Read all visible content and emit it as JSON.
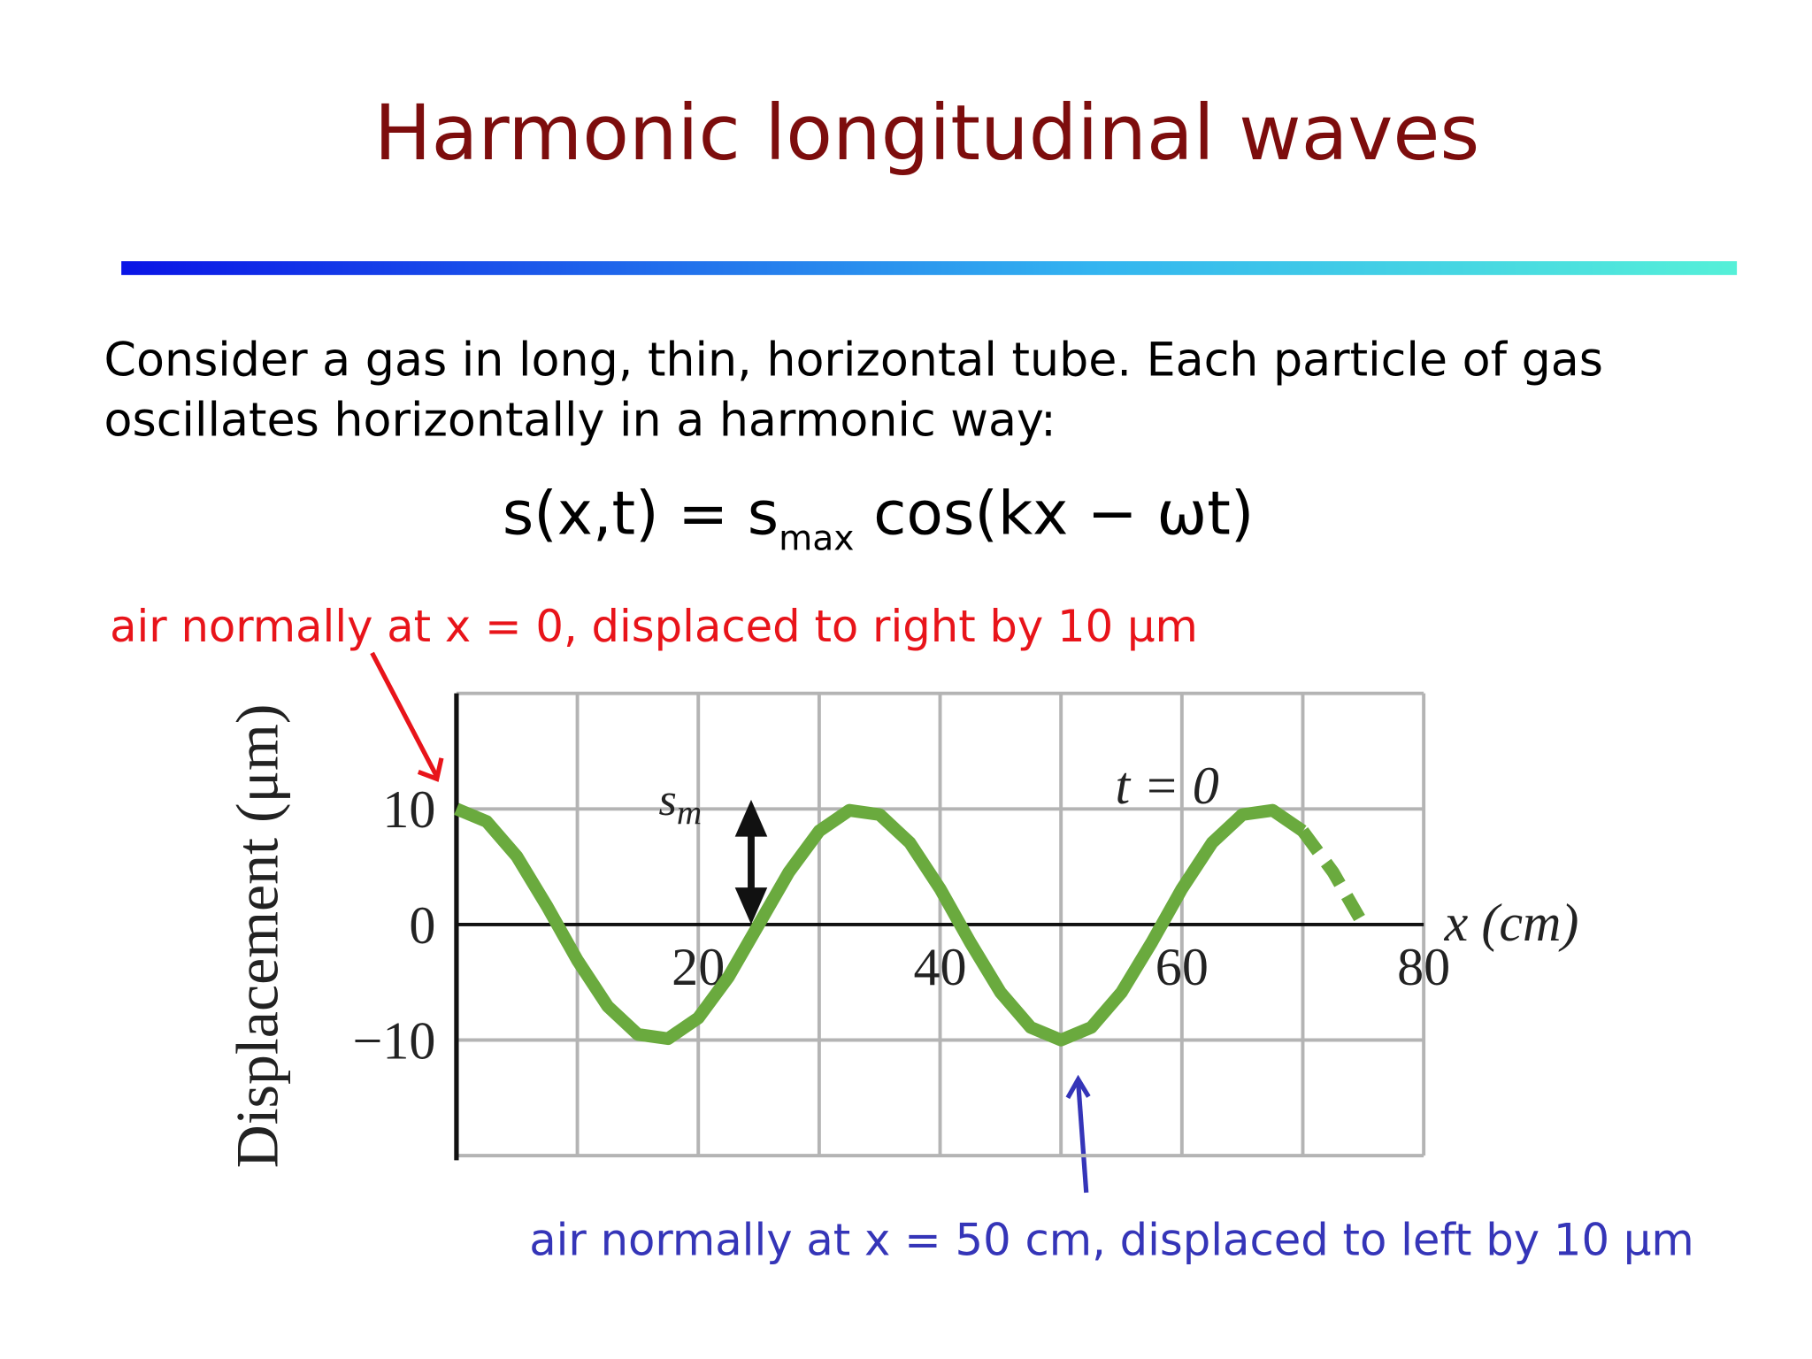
{
  "title": "Harmonic longitudinal waves",
  "body": [
    "Consider a gas in long, thin, horizontal tube. Each particle of gas",
    "oscillates horizontally in a harmonic way:"
  ],
  "equation": {
    "lhs": "s(x,t) = s",
    "sub": "max",
    "rhs": " cos(kx − ωt)"
  },
  "annotations": {
    "red": "air normally at x = 0, displaced to right by 10 μm",
    "blue": "air normally at x = 50 cm, displaced to left by 10 μm"
  },
  "chart_data": {
    "type": "line",
    "y_label": "Displacement (μm)",
    "x_label": "x (cm)",
    "curve_label": "t = 0",
    "amplitude_label": "s",
    "amplitude_label_sub": "m",
    "x": [
      0,
      2.5,
      5,
      7.5,
      10,
      12.5,
      15,
      17.5,
      20,
      22.5,
      25,
      27.5,
      30,
      32.5,
      35,
      37.5,
      40,
      42.5,
      45,
      47.5,
      50,
      52.5,
      55,
      57.5,
      60,
      62.5,
      65,
      67.5,
      70,
      72.5,
      75
    ],
    "series": [
      {
        "color": "#6aaa3e",
        "values": [
          10,
          8.91,
          5.88,
          1.56,
          -3.09,
          -7.07,
          -9.51,
          -9.88,
          -8.09,
          -4.54,
          0,
          4.54,
          8.09,
          9.88,
          9.51,
          7.07,
          3.09,
          -1.56,
          -5.88,
          -8.91,
          -10,
          -8.91,
          -5.88,
          -1.56,
          3.09,
          7.07,
          9.51,
          9.88,
          8.09,
          null,
          null
        ]
      },
      {
        "color": "#6aaa3e",
        "dashed": true,
        "values": [
          null,
          null,
          null,
          null,
          null,
          null,
          null,
          null,
          null,
          null,
          null,
          null,
          null,
          null,
          null,
          null,
          null,
          null,
          null,
          null,
          null,
          null,
          null,
          null,
          null,
          null,
          null,
          null,
          8.09,
          4.54,
          0
        ]
      }
    ],
    "xlim": [
      0,
      80
    ],
    "ylim": [
      -20,
      20
    ],
    "xticks": [
      20,
      40,
      60,
      80
    ],
    "yticks": [
      {
        "value": -10,
        "label": "−10"
      },
      0,
      10
    ],
    "xgrid": [
      0,
      10,
      20,
      30,
      40,
      50,
      60,
      70,
      80
    ],
    "ygrid": [
      -20,
      -10,
      0,
      10,
      20
    ]
  }
}
